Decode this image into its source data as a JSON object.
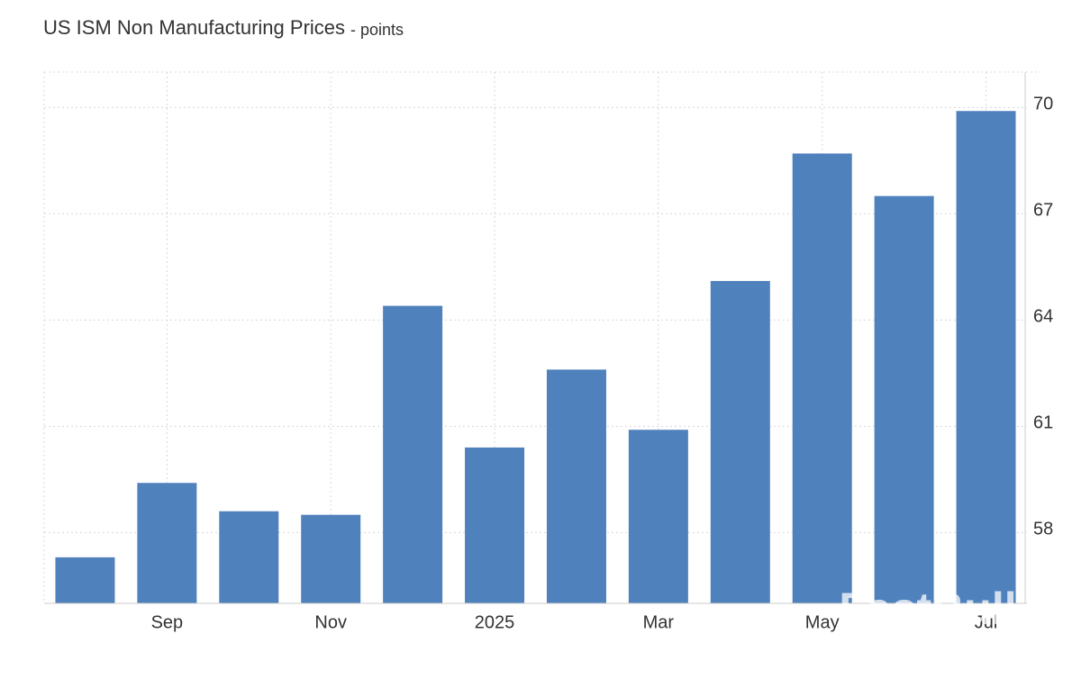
{
  "chart_data": {
    "type": "bar",
    "title": "US ISM Non Manufacturing Prices",
    "subtitle": "- points",
    "categories": [
      null,
      "Sep",
      null,
      "Nov",
      null,
      "2025",
      null,
      "Mar",
      null,
      "May",
      null,
      "Jul"
    ],
    "values": [
      57.3,
      59.4,
      58.6,
      58.5,
      64.4,
      60.4,
      62.6,
      60.9,
      65.1,
      68.7,
      67.5,
      69.9
    ],
    "color": "#4f81bd",
    "ylim": [
      56,
      71
    ],
    "yticks": [
      58,
      61,
      64,
      67,
      70
    ],
    "grid": true,
    "watermark": "FastBull"
  }
}
